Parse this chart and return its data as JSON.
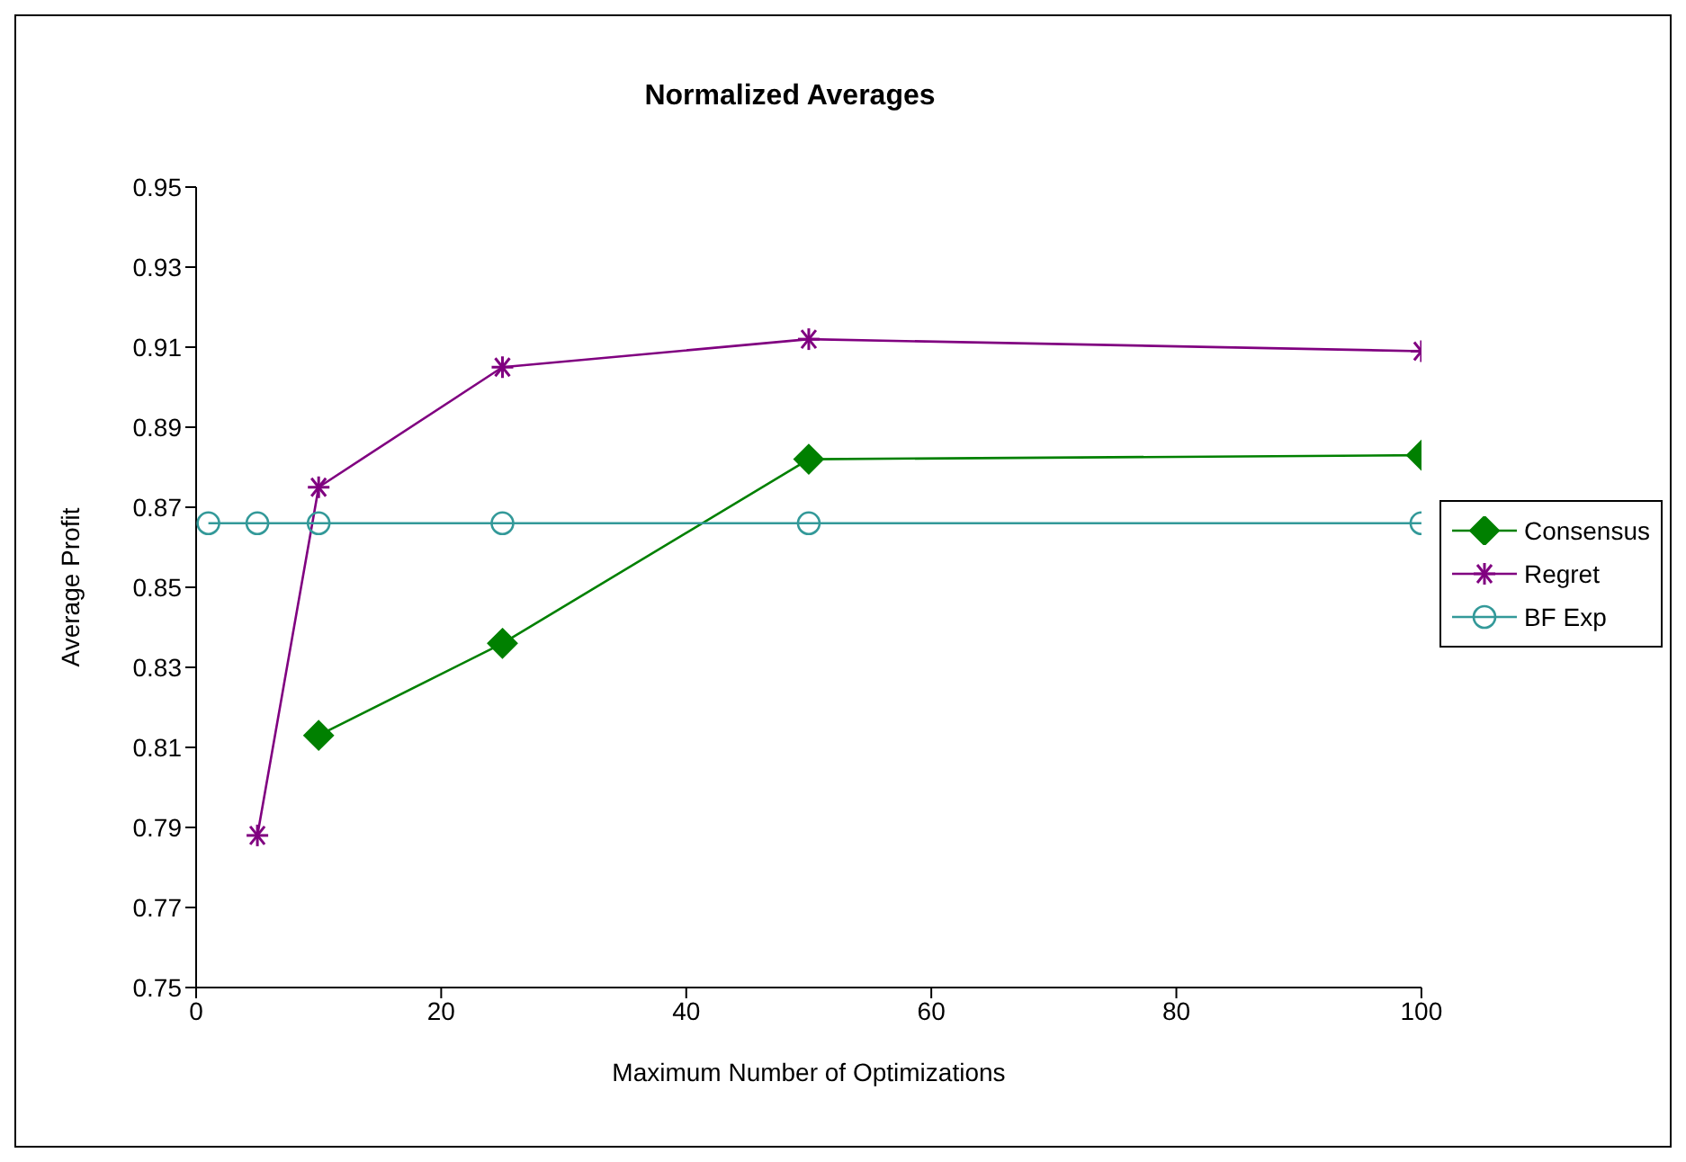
{
  "chart_data": {
    "type": "line",
    "title": "Normalized Averages",
    "xlabel": "Maximum Number of Optimizations",
    "ylabel": "Average Profit",
    "xlim": [
      0,
      100
    ],
    "xticks": [
      0,
      20,
      40,
      60,
      80,
      100
    ],
    "ylim": [
      0.75,
      0.95
    ],
    "yticks": [
      0.75,
      0.77,
      0.79,
      0.81,
      0.83,
      0.85,
      0.87,
      0.89,
      0.91,
      0.93,
      0.95
    ],
    "grid": false,
    "legend": "right",
    "series": [
      {
        "name": "Consensus",
        "color": "#008000",
        "marker": "diamond",
        "x": [
          10,
          25,
          50,
          100
        ],
        "values": [
          0.813,
          0.836,
          0.882,
          0.883
        ]
      },
      {
        "name": "Regret",
        "color": "#800080",
        "marker": "cross",
        "x": [
          5,
          10,
          25,
          50,
          100
        ],
        "values": [
          0.788,
          0.875,
          0.905,
          0.912,
          0.909
        ]
      },
      {
        "name": "BF Exp",
        "color": "#339999",
        "marker": "circle",
        "x": [
          1,
          5,
          10,
          25,
          50,
          100
        ],
        "values": [
          0.866,
          0.866,
          0.866,
          0.866,
          0.866,
          0.866
        ]
      }
    ]
  }
}
